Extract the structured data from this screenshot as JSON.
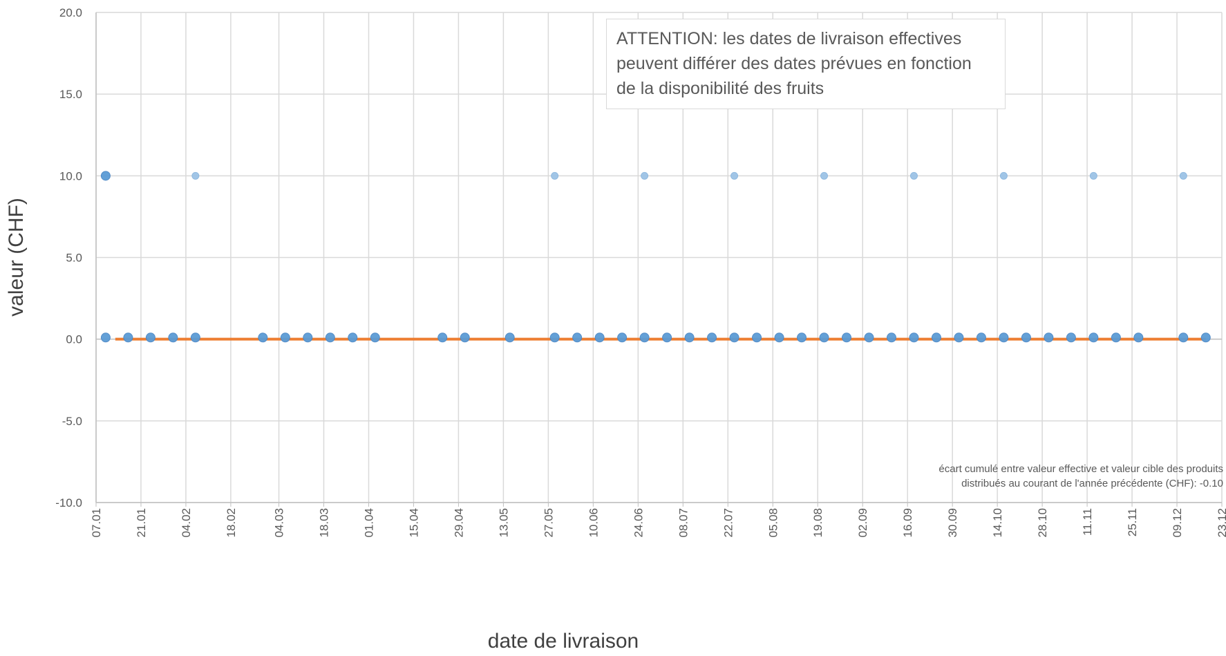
{
  "chart_data": {
    "type": "scatter",
    "title": "",
    "xlabel": "date de livraison",
    "ylabel": "valeur (CHF)",
    "ylim": [
      -10,
      20
    ],
    "y_ticks": [
      "20.0",
      "15.0",
      "10.0",
      "5.0",
      "0.0",
      "-5.0",
      "-10.0"
    ],
    "x_ticks": [
      "07.01",
      "21.01",
      "04.02",
      "18.02",
      "04.03",
      "18.03",
      "01.04",
      "15.04",
      "29.04",
      "13.05",
      "27.05",
      "10.06",
      "24.06",
      "08.07",
      "22.07",
      "05.08",
      "19.08",
      "02.09",
      "16.09",
      "30.09",
      "14.10",
      "28.10",
      "11.11",
      "25.11",
      "09.12",
      "23.12"
    ],
    "grid": true,
    "annotation": "ATTENTION: les dates de livraison effectives peuvent différer des dates prévues en fonction de la disponibilité des fruits",
    "footnote_lines": [
      "écart cumulé entre valeur effective et valeur cible des produits",
      "distribués au courant de l'année précédente (CHF): -0.10"
    ],
    "series": [
      {
        "type": "scatter",
        "color": "#5b9bd5",
        "x": [
          "10.01",
          "10.01",
          "17.01",
          "24.01",
          "31.01",
          "07.02",
          "28.02",
          "06.03",
          "13.03",
          "20.03",
          "27.03",
          "03.04",
          "24.04",
          "01.05",
          "15.05",
          "29.05",
          "05.06",
          "12.06",
          "19.06",
          "26.06",
          "03.07",
          "10.07",
          "17.07",
          "24.07",
          "31.07",
          "07.08",
          "14.08",
          "21.08",
          "28.08",
          "04.09",
          "11.09",
          "18.09",
          "25.09",
          "02.10",
          "09.10",
          "16.10",
          "23.10",
          "30.10",
          "06.11",
          "13.11",
          "20.11",
          "27.11",
          "11.12",
          "18.12"
        ],
        "y": [
          10.0,
          0.1,
          0.1,
          0.1,
          0.1,
          0.1,
          0.1,
          0.1,
          0.1,
          0.1,
          0.1,
          0.1,
          0.1,
          0.1,
          0.1,
          0.1,
          0.1,
          0.1,
          0.1,
          0.1,
          0.1,
          0.1,
          0.1,
          0.1,
          0.1,
          0.1,
          0.1,
          0.1,
          0.1,
          0.1,
          0.1,
          0.1,
          0.1,
          0.1,
          0.1,
          0.1,
          0.1,
          0.1,
          0.1,
          0.1,
          0.1,
          0.1,
          0.1,
          0.1
        ]
      },
      {
        "type": "scatter",
        "color": "#9dc3e6",
        "x": [
          "07.02",
          "29.05",
          "26.06",
          "24.07",
          "21.08",
          "18.09",
          "16.10",
          "13.11",
          "11.12"
        ],
        "y": [
          10.0,
          10.0,
          10.0,
          10.0,
          10.0,
          10.0,
          10.0,
          10.0,
          10.0
        ]
      },
      {
        "type": "line",
        "color": "#ed7d31",
        "x": [
          "13.01",
          "18.12"
        ],
        "y": [
          0.0,
          0.0
        ]
      }
    ]
  }
}
